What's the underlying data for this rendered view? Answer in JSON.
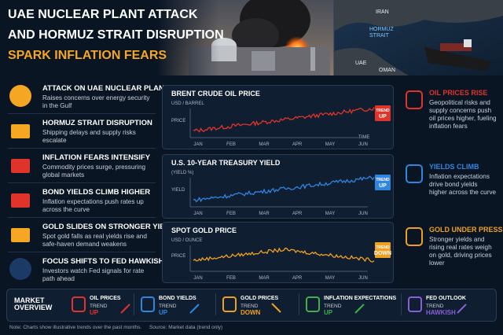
{
  "header": {
    "title_lines": [
      "UAE NUCLEAR PLANT ATTACK",
      "AND HORMUZ STRAIT DISRUPTION",
      "SPARK INFLATION FEARS"
    ],
    "map_labels": [
      "IRAN",
      "HORMUZ STRAIT",
      "UAE",
      "OMAN"
    ]
  },
  "left_items": [
    {
      "title": "ATTACK ON UAE NUCLEAR PLANT",
      "text": "Raises concerns over energy security in the Gulf"
    },
    {
      "title": "HORMUZ STRAIT DISRUPTION",
      "text": "Shipping delays and supply risks escalate"
    },
    {
      "title": "INFLATION FEARS INTENSIFY",
      "text": "Commodity prices surge, pressuring global markets"
    },
    {
      "title": "BOND YIELDS CLIMB HIGHER",
      "text": "Inflation expectations push rates up across the curve"
    },
    {
      "title": "GOLD SLIDES ON STRONGER YIELDS",
      "text": "Spot gold falls as real yields rise and safe-haven demand weakens"
    },
    {
      "title": "FOCUS SHIFTS TO FED HAWKISH TONE",
      "text": "Investors watch Fed signals for rate path ahead"
    }
  ],
  "charts": [
    {
      "title": "BRENT CRUDE OIL PRICE",
      "unit": "USD / BARREL",
      "ylabel": "PRICE",
      "xlabel": "TIME",
      "color": "#e0342a",
      "months": [
        "JAN",
        "FEB",
        "MAR",
        "APR",
        "MAY",
        "JUN"
      ],
      "badge": [
        "TREND",
        "UP"
      ]
    },
    {
      "title": "U.S. 10-YEAR TREASURY YIELD",
      "unit": "(YIELD %)",
      "ylabel": "YIELD",
      "color": "#2f86e0",
      "months": [
        "JAN",
        "FEB",
        "MAR",
        "APR",
        "MAY",
        "JUN"
      ],
      "badge": [
        "TREND",
        "UP"
      ]
    },
    {
      "title": "SPOT GOLD PRICE",
      "unit": "USD / OUNCE",
      "ylabel": "PRICE",
      "color": "#f0a020",
      "months": [
        "JAN",
        "FEB",
        "MAR",
        "APR",
        "MAY",
        "JUN"
      ],
      "badge": [
        "TREND",
        "DOWN"
      ]
    }
  ],
  "right_items": [
    {
      "title": "OIL PRICES RISE",
      "text": "Geopolitical risks and supply concerns push oil prices higher, fueling inflation fears",
      "color": "#e0342a"
    },
    {
      "title": "YIELDS CLIMB",
      "text": "Inflation expectations drive bond yields higher across the curve",
      "color": "#2f86e0"
    },
    {
      "title": "GOLD UNDER PRESSURE",
      "text": "Stronger yields and rising real rates weigh on gold, driving prices lower",
      "color": "#f0a020"
    }
  ],
  "overview": {
    "label": "MARKET OVERVIEW",
    "items": [
      {
        "name": "OIL PRICES",
        "trend": "TREND",
        "value": "UP",
        "color": "#e0342a"
      },
      {
        "name": "BOND YIELDS",
        "trend": "TREND",
        "value": "UP",
        "color": "#2f86e0"
      },
      {
        "name": "GOLD PRICES",
        "trend": "TREND",
        "value": "DOWN",
        "color": "#f0a020"
      },
      {
        "name": "INFLATION EXPECTATIONS",
        "trend": "TREND",
        "value": "UP",
        "color": "#3fb04a"
      },
      {
        "name": "FED OUTLOOK",
        "trend": "TREND",
        "value": "HAWKISH",
        "color": "#8a5fd6"
      }
    ]
  },
  "footer": {
    "note": "Note: Charts show illustrative trends over the past months.",
    "source": "Source: Market data (trend only)"
  }
}
